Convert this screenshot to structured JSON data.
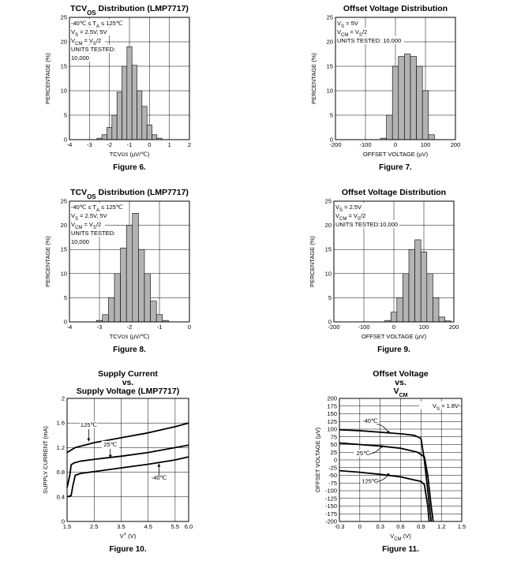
{
  "figures": [
    {
      "title": "TCV<tspan baseline-shift='sub' font-size='8'>OS</tspan> Distribution (LMP7717)",
      "caption": "Figure 6.",
      "chart_data": {
        "type": "bar",
        "xlabel": "TCV<tspan font-size='6'>OS</tspan> (µV/℃)",
        "ylabel": "PERCENTAGE (%)",
        "xlim": [
          -4,
          2
        ],
        "ylim": [
          0,
          25
        ],
        "xticks": [
          "-4",
          "-3",
          "-2",
          "-1",
          "0",
          "1",
          "2"
        ],
        "yticks": [
          "0",
          "5",
          "10",
          "15",
          "20",
          "25"
        ],
        "bin_width": 0.25,
        "bins": [
          {
            "x": -2.5,
            "y": 0.3
          },
          {
            "x": -2.25,
            "y": 1.0
          },
          {
            "x": -2.0,
            "y": 2.5
          },
          {
            "x": -1.75,
            "y": 5.0
          },
          {
            "x": -1.5,
            "y": 9.7
          },
          {
            "x": -1.25,
            "y": 15.0
          },
          {
            "x": -1.0,
            "y": 19.0
          },
          {
            "x": -0.75,
            "y": 15.2
          },
          {
            "x": -0.5,
            "y": 10.0
          },
          {
            "x": -0.25,
            "y": 6.8
          },
          {
            "x": 0.0,
            "y": 3.0
          },
          {
            "x": 0.25,
            "y": 1.0
          },
          {
            "x": 0.5,
            "y": 0.3
          }
        ]
      },
      "annotations": [
        "-40℃ ≤ T<tspan baseline-shift='sub' font-size='6'>A</tspan> ≤ 125℃",
        "V<tspan baseline-shift='sub' font-size='6'>S</tspan> = 2.5V, 5V",
        "V<tspan baseline-shift='sub' font-size='6'>CM</tspan> = V<tspan baseline-shift='sub' font-size='6'>S</tspan>/2",
        "UNITS TESTED:",
        "10,000"
      ]
    },
    {
      "title": "Offset Voltage Distribution",
      "caption": "Figure 7.",
      "chart_data": {
        "type": "bar",
        "xlabel": "OFFSET VOLTAGE (µV)",
        "ylabel": "PERCENTAGE (%)",
        "xlim": [
          -200,
          200
        ],
        "ylim": [
          0,
          25
        ],
        "xticks": [
          "-200",
          "-100",
          "0",
          "100",
          "200"
        ],
        "yticks": [
          "0",
          "5",
          "10",
          "15",
          "20",
          "25"
        ],
        "bin_width": 20,
        "bins": [
          {
            "x": -40,
            "y": 0.3
          },
          {
            "x": -20,
            "y": 5.0
          },
          {
            "x": 0,
            "y": 15.0
          },
          {
            "x": 20,
            "y": 17.0
          },
          {
            "x": 40,
            "y": 17.5
          },
          {
            "x": 60,
            "y": 17.0
          },
          {
            "x": 80,
            "y": 15.0
          },
          {
            "x": 100,
            "y": 10.0
          },
          {
            "x": 120,
            "y": 1.0
          }
        ]
      },
      "annotations": [
        "V<tspan baseline-shift='sub' font-size='6'>S</tspan> = 5V",
        "V<tspan baseline-shift='sub' font-size='6'>CM</tspan> = V<tspan baseline-shift='sub' font-size='6'>S</tspan>/2",
        "UNITS TESTED: 10,000"
      ]
    },
    {
      "title": "TCV<tspan baseline-shift='sub' font-size='8'>OS</tspan> Distribution (LMP7717)",
      "caption": "Figure 8.",
      "chart_data": {
        "type": "bar",
        "xlabel": "TCV<tspan font-size='6'>OS</tspan> (µV/℃)",
        "ylabel": "PERCENTAGE (%)",
        "xlim": [
          -4,
          0
        ],
        "ylim": [
          0,
          25
        ],
        "xticks": [
          "-4",
          "-3",
          "-2",
          "-1",
          "0"
        ],
        "yticks": [
          "0",
          "5",
          "10",
          "15",
          "20",
          "25"
        ],
        "bin_width": 0.2,
        "bins": [
          {
            "x": -3.0,
            "y": 0.3
          },
          {
            "x": -2.8,
            "y": 1.5
          },
          {
            "x": -2.6,
            "y": 5.0
          },
          {
            "x": -2.4,
            "y": 10.0
          },
          {
            "x": -2.2,
            "y": 15.3
          },
          {
            "x": -2.0,
            "y": 20.0
          },
          {
            "x": -1.8,
            "y": 22.5
          },
          {
            "x": -1.6,
            "y": 15.0
          },
          {
            "x": -1.4,
            "y": 10.0
          },
          {
            "x": -1.2,
            "y": 4.3
          },
          {
            "x": -1.0,
            "y": 1.5
          },
          {
            "x": -0.8,
            "y": 0.3
          }
        ]
      },
      "annotations": [
        "-40℃ ≤ T<tspan baseline-shift='sub' font-size='6'>A</tspan> ≤ 125℃",
        "V<tspan baseline-shift='sub' font-size='6'>S</tspan> = 2.5V, 5V",
        "V<tspan baseline-shift='sub' font-size='6'>CM</tspan> = V<tspan baseline-shift='sub' font-size='6'>S</tspan>/2",
        "UNITS TESTED:",
        "10,000"
      ]
    },
    {
      "title": "Offset Voltage Distribution",
      "caption": "Figure 9.",
      "chart_data": {
        "type": "bar",
        "xlabel": "OFFSET VOLTAGE (µV)",
        "ylabel": "PERCENTAGE (%)",
        "xlim": [
          -200,
          200
        ],
        "ylim": [
          0,
          25
        ],
        "xticks": [
          "-200",
          "-100",
          "0",
          "100",
          "200"
        ],
        "yticks": [
          "0",
          "5",
          "10",
          "15",
          "20",
          "25"
        ],
        "bin_width": 20,
        "bins": [
          {
            "x": -20,
            "y": 0.3
          },
          {
            "x": 0,
            "y": 2.0
          },
          {
            "x": 20,
            "y": 5.0
          },
          {
            "x": 40,
            "y": 10.0
          },
          {
            "x": 60,
            "y": 15.0
          },
          {
            "x": 80,
            "y": 17.0
          },
          {
            "x": 100,
            "y": 14.5
          },
          {
            "x": 120,
            "y": 10.0
          },
          {
            "x": 140,
            "y": 5.0
          },
          {
            "x": 160,
            "y": 1.0
          },
          {
            "x": 180,
            "y": 0.2
          }
        ]
      },
      "annotations": [
        "V<tspan baseline-shift='sub' font-size='6'>S</tspan> = 2.5V",
        "V<tspan baseline-shift='sub' font-size='6'>CM</tspan> = V<tspan baseline-shift='sub' font-size='6'>S</tspan>/2",
        "UNITS TESTED:10,000"
      ]
    },
    {
      "title": "Supply Current",
      "title2": "vs.",
      "title3": "Supply Voltage (LMP7717)",
      "caption": "Figure 10.",
      "chart_data": {
        "type": "line",
        "xlabel": "V<tspan baseline-shift='super' font-size='6'>+</tspan> (V)",
        "ylabel": "SUPPLY CURRENT (mA)",
        "xlim": [
          1.5,
          6.0
        ],
        "ylim": [
          0,
          2
        ],
        "xticks": [
          "1.5",
          "2.5",
          "3.5",
          "4.5",
          "5.5",
          "6.0"
        ],
        "xtick_values": [
          1.5,
          2.5,
          3.5,
          4.5,
          5.5,
          6.0
        ],
        "yticks": [
          "0",
          "0.4",
          "0.8",
          "1.2",
          "1.6",
          "2"
        ],
        "series": [
          {
            "name": "125℃",
            "x": [
              1.5,
              1.8,
              2.5,
              3.5,
              4.5,
              5.5,
              6.0
            ],
            "y": [
              1.12,
              1.2,
              1.28,
              1.36,
              1.44,
              1.54,
              1.6
            ]
          },
          {
            "name": "25℃",
            "x": [
              1.5,
              1.6,
              1.65,
              1.75,
              2.0,
              2.5,
              3.5,
              4.5,
              5.5,
              6.0
            ],
            "y": [
              0.55,
              0.75,
              0.92,
              0.95,
              0.98,
              1.01,
              1.06,
              1.12,
              1.2,
              1.24
            ]
          },
          {
            "name": "-40℃",
            "x": [
              1.5,
              1.65,
              1.7,
              1.8,
              2.0,
              2.5,
              3.5,
              4.5,
              5.5,
              6.0
            ],
            "y": [
              0.4,
              0.42,
              0.55,
              0.75,
              0.78,
              0.81,
              0.87,
              0.93,
              1.0,
              1.05
            ]
          }
        ]
      },
      "labels": [
        "125℃",
        "25℃",
        "-40℃"
      ]
    },
    {
      "title": "Offset Voltage",
      "title2": "vs.",
      "title3": "V<tspan baseline-shift='sub' font-size='7'>CM</tspan>",
      "caption": "Figure 11.",
      "chart_data": {
        "type": "line",
        "xlabel": "V<tspan baseline-shift='sub' font-size='6'>CM</tspan> (V)",
        "ylabel": "OFFSET VOLTAGE (µV)",
        "xlim": [
          -0.3,
          1.5
        ],
        "ylim": [
          -200,
          200
        ],
        "xticks": [
          "-0.3",
          "0",
          "0.3",
          "0.6",
          "0.9",
          "1.2",
          "1.5"
        ],
        "xtick_values": [
          -0.3,
          0,
          0.3,
          0.6,
          0.9,
          1.2,
          1.5
        ],
        "yticks": [
          "-200",
          "-175",
          "-150",
          "-125",
          "-100",
          "-75",
          "-50",
          "-25",
          "0",
          "25",
          "50",
          "75",
          "100",
          "125",
          "150",
          "175",
          "200"
        ],
        "series": [
          {
            "name": "-40℃",
            "x": [
              -0.3,
              0,
              0.3,
              0.6,
              0.8,
              0.9,
              0.95,
              1.0,
              1.05
            ],
            "y": [
              98,
              95,
              90,
              85,
              80,
              70,
              0,
              -100,
              -200
            ]
          },
          {
            "name": "25℃",
            "x": [
              -0.3,
              0,
              0.3,
              0.6,
              0.85,
              0.95,
              1.0,
              1.05,
              1.08
            ],
            "y": [
              55,
              50,
              45,
              38,
              25,
              10,
              -50,
              -150,
              -200
            ]
          },
          {
            "name": "125℃",
            "x": [
              -0.3,
              0,
              0.3,
              0.6,
              0.8,
              0.9,
              0.95,
              1.0,
              1.02
            ],
            "y": [
              -35,
              -40,
              -47,
              -55,
              -65,
              -70,
              -80,
              -150,
              -200
            ]
          }
        ]
      },
      "annotations": [
        "V<tspan baseline-shift='sub' font-size='6'>S</tspan> = 1.8V"
      ],
      "labels": [
        "-40℃",
        "25℃",
        "125℃"
      ]
    }
  ]
}
